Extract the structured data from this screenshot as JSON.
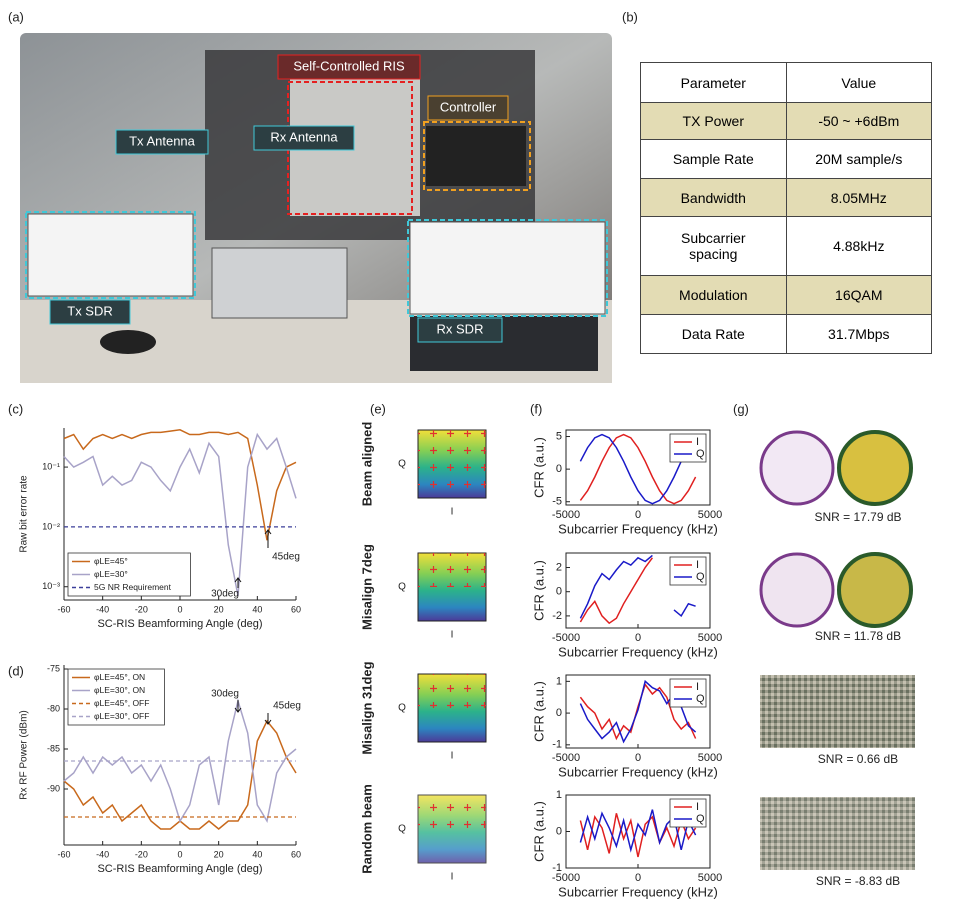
{
  "panel_labels": [
    "(a)",
    "(b)",
    "(c)",
    "(d)",
    "(e)",
    "(f)",
    "(g)"
  ],
  "photo": {
    "labels": [
      "Self-Controlled RIS",
      "Controller",
      "Tx Antenna",
      "Rx Antenna",
      "Tx SDR",
      "Rx SDR"
    ]
  },
  "table": {
    "header": [
      "Parameter",
      "Value"
    ],
    "rows": [
      [
        "TX Power",
        "-50 ~ +6dBm"
      ],
      [
        "Sample Rate",
        "20M sample/s"
      ],
      [
        "Bandwidth",
        "8.05MHz"
      ],
      [
        "Subcarrier spacing",
        "4.88kHz"
      ],
      [
        "Modulation",
        "16QAM"
      ],
      [
        "Data Rate",
        "31.7Mbps"
      ]
    ]
  },
  "chart_data": [
    {
      "type": "line",
      "xlabel": "SC-RIS Beamforming Angle (deg)",
      "ylabel": "Raw bit error rate",
      "log_y": true,
      "legend": "lower left",
      "x": [
        -60,
        -55,
        -50,
        -45,
        -40,
        -35,
        -30,
        -25,
        -20,
        -15,
        -10,
        -5,
        0,
        5,
        10,
        15,
        20,
        25,
        30,
        35,
        40,
        45,
        50,
        55,
        60
      ],
      "xlim": [
        -60,
        60
      ],
      "xticks": [
        -60,
        -40,
        -20,
        0,
        20,
        40,
        60
      ],
      "ylim": [
        0.0006,
        0.45
      ],
      "yticks": [
        {
          "value": 0.001,
          "label": "10⁻³"
        },
        {
          "value": 0.01,
          "label": "10⁻²"
        },
        {
          "value": 0.1,
          "label": "10⁻¹"
        }
      ],
      "series": [
        {
          "name": "φLE=45°",
          "color": "#c8691c",
          "dash": false,
          "values": [
            0.3,
            0.35,
            0.2,
            0.3,
            0.35,
            0.3,
            0.35,
            0.3,
            0.35,
            0.38,
            0.38,
            0.4,
            0.42,
            0.35,
            0.35,
            0.38,
            0.38,
            0.35,
            0.38,
            0.3,
            0.05,
            0.006,
            0.04,
            0.1,
            0.12
          ]
        },
        {
          "name": "φLE=30°",
          "color": "#a8a3c8",
          "dash": false,
          "values": [
            0.15,
            0.1,
            0.12,
            0.15,
            0.05,
            0.07,
            0.05,
            0.06,
            0.12,
            0.1,
            0.06,
            0.04,
            0.1,
            0.2,
            0.08,
            0.25,
            0.15,
            0.005,
            0.0007,
            0.1,
            0.35,
            0.2,
            0.3,
            0.1,
            0.03
          ]
        },
        {
          "name": "5G NR Requirement",
          "color": "#3b3f9a",
          "dash": true,
          "values": [
            0.01,
            0.01,
            0.01,
            0.01,
            0.01,
            0.01,
            0.01,
            0.01,
            0.01,
            0.01,
            0.01,
            0.01,
            0.01,
            0.01,
            0.01,
            0.01,
            0.01,
            0.01,
            0.01,
            0.01,
            0.01,
            0.01,
            0.01,
            0.01,
            0.01
          ]
        }
      ],
      "annotations": [
        "30deg",
        "45deg"
      ]
    },
    {
      "type": "line",
      "xlabel": "SC-RIS Beamforming Angle (deg)",
      "ylabel": "Rx RF Power (dBm)",
      "log_y": false,
      "legend": "upper left",
      "x": [
        -60,
        -55,
        -50,
        -45,
        -40,
        -35,
        -30,
        -25,
        -20,
        -15,
        -10,
        -5,
        0,
        5,
        10,
        15,
        20,
        25,
        30,
        35,
        40,
        45,
        50,
        55,
        60
      ],
      "xlim": [
        -60,
        60
      ],
      "xticks": [
        -60,
        -40,
        -20,
        0,
        20,
        40,
        60
      ],
      "ylim": [
        -97,
        -74.5
      ],
      "yticks": [
        -90,
        -85,
        -80,
        -75
      ],
      "series": [
        {
          "name": "φLE=45°, ON",
          "color": "#c8691c",
          "dash": false,
          "values": [
            -89,
            -90,
            -92,
            -91,
            -93,
            -92,
            -94,
            -93,
            -92,
            -94,
            -95,
            -95,
            -94,
            -95,
            -95,
            -94,
            -95,
            -94,
            -94,
            -92,
            -84,
            -81.5,
            -83,
            -86,
            -88
          ]
        },
        {
          "name": "φLE=30°, ON",
          "color": "#a8a3c8",
          "dash": false,
          "values": [
            -89,
            -88,
            -86,
            -88,
            -86,
            -87,
            -86,
            -88,
            -87,
            -89,
            -87,
            -90,
            -94,
            -92,
            -87,
            -86,
            -92,
            -84,
            -79,
            -83,
            -92,
            -94,
            -88,
            -86,
            -85
          ]
        },
        {
          "name": "φLE=45°, OFF",
          "color": "#c8691c",
          "dash": true,
          "values": [
            -93.5,
            -93.5,
            -93.5,
            -93.5,
            -93.5,
            -93.5,
            -93.5,
            -93.5,
            -93.5,
            -93.5,
            -93.5,
            -93.5,
            -93.5,
            -93.5,
            -93.5,
            -93.5,
            -93.5,
            -93.5,
            -93.5,
            -93.5,
            -93.5,
            -93.5,
            -93.5,
            -93.5,
            -93.5
          ]
        },
        {
          "name": "φLE=30°, OFF",
          "color": "#a8a3c8",
          "dash": true,
          "values": [
            -86.5,
            -86.5,
            -86.5,
            -86.5,
            -86.5,
            -86.5,
            -86.5,
            -86.5,
            -86.5,
            -86.5,
            -86.5,
            -86.5,
            -86.5,
            -86.5,
            -86.5,
            -86.5,
            -86.5,
            -86.5,
            -86.5,
            -86.5,
            -86.5,
            -86.5,
            -86.5,
            -86.5,
            -86.5
          ]
        }
      ],
      "annotations": [
        "30deg",
        "45deg"
      ]
    },
    {
      "type": "line",
      "xlabel": "Subcarrier Frequency (kHz)",
      "ylabel": "CFR (a.u.)",
      "box": true,
      "legend": "upper right",
      "x": [
        -4000,
        -3500,
        -3000,
        -2500,
        -2000,
        -1500,
        -1000,
        -500,
        0,
        500,
        1000,
        1500,
        2000,
        2500,
        3000,
        3500,
        4000
      ],
      "xlim": [
        -5000,
        5000
      ],
      "xticks": [
        -5000,
        0,
        5000
      ],
      "ylim": [
        -5.5,
        6
      ],
      "yticks": [
        -5,
        0,
        5
      ],
      "series": [
        {
          "name": "I",
          "color": "#e02020",
          "values": [
            -4.8,
            -3.3,
            -1.2,
            1.2,
            3.3,
            4.8,
            5.3,
            4.8,
            3.3,
            1.2,
            -1.2,
            -3.3,
            -4.8,
            -5.3,
            -4.8,
            -3.3,
            -1.2
          ]
        },
        {
          "name": "Q",
          "color": "#1a1ac8",
          "values": [
            1.2,
            3.3,
            4.8,
            5.3,
            4.8,
            3.3,
            1.2,
            -1.2,
            -3.3,
            -4.8,
            -5.3,
            -4.8,
            -3.3,
            -1.2,
            1.2,
            3.3,
            4.8
          ]
        }
      ]
    },
    {
      "type": "line",
      "xlabel": "Subcarrier Frequency (kHz)",
      "ylabel": "CFR (a.u.)",
      "box": true,
      "legend": "upper right",
      "x": [
        -4000,
        -3500,
        -3000,
        -2500,
        -2000,
        -1500,
        -1000,
        -500,
        0,
        500,
        1000,
        1500,
        2000,
        2500,
        3000,
        3500,
        4000
      ],
      "xlim": [
        -5000,
        5000
      ],
      "xticks": [
        -5000,
        0,
        5000
      ],
      "ylim": [
        -3,
        3.2
      ],
      "yticks": [
        -2,
        0,
        2
      ],
      "series": [
        {
          "name": "I",
          "color": "#e02020",
          "values": [
            -2.5,
            -1.5,
            -0.8,
            -2,
            -2.6,
            -2.2,
            -1,
            0,
            1,
            2,
            2.8,
            null,
            null,
            null,
            null,
            null,
            null
          ]
        },
        {
          "name": "Q",
          "color": "#1a1ac8",
          "values": [
            -2.2,
            -1,
            0.5,
            1.5,
            1,
            1.8,
            2.5,
            2.2,
            2.8,
            2.5,
            3,
            null,
            null,
            -1.5,
            -2,
            -1,
            -1.2
          ]
        }
      ]
    },
    {
      "type": "line",
      "xlabel": "Subcarrier Frequency (kHz)",
      "ylabel": "CFR (a.u.)",
      "box": true,
      "legend": "upper right",
      "x": [
        -4000,
        -3500,
        -3000,
        -2500,
        -2000,
        -1500,
        -1000,
        -500,
        0,
        500,
        1000,
        1500,
        2000,
        2500,
        3000,
        3500,
        4000
      ],
      "xlim": [
        -5000,
        5000
      ],
      "xticks": [
        -5000,
        0,
        5000
      ],
      "ylim": [
        -1.1,
        1.2
      ],
      "yticks": [
        -1,
        0,
        1
      ],
      "series": [
        {
          "name": "I",
          "color": "#e02020",
          "values": [
            0.5,
            0.2,
            0,
            -0.5,
            -0.2,
            -0.8,
            -0.4,
            -0.6,
            0.2,
            0.9,
            0.6,
            0.8,
            0.5,
            -0.2,
            -0.5,
            -0.3,
            -0.8
          ]
        },
        {
          "name": "Q",
          "color": "#1a1ac8",
          "values": [
            0.3,
            -0.2,
            -0.5,
            -0.8,
            -0.6,
            -0.3,
            -0.9,
            -0.5,
            0.1,
            1,
            0.8,
            0.7,
            0.3,
            0.6,
            0.2,
            -0.4,
            -0.6
          ]
        }
      ]
    },
    {
      "type": "line",
      "xlabel": "Subcarrier Frequency (kHz)",
      "ylabel": "CFR (a.u.)",
      "box": true,
      "legend": "upper right",
      "x": [
        -4000,
        -3500,
        -3000,
        -2500,
        -2000,
        -1500,
        -1000,
        -500,
        0,
        500,
        1000,
        1500,
        2000,
        2500,
        3000,
        3500,
        4000
      ],
      "xlim": [
        -5000,
        5000
      ],
      "xticks": [
        -5000,
        0,
        5000
      ],
      "ylim": [
        -1,
        1
      ],
      "yticks": [
        -1,
        0,
        1
      ],
      "series": [
        {
          "name": "I",
          "color": "#e02020",
          "values": [
            0.3,
            -0.5,
            0.4,
            0.1,
            -0.6,
            0.5,
            -0.2,
            0.3,
            -0.7,
            0.2,
            0.4,
            -0.3,
            0.1,
            -0.4,
            0.3,
            -0.2,
            0.1
          ]
        },
        {
          "name": "Q",
          "color": "#1a1ac8",
          "values": [
            -0.3,
            0.4,
            -0.2,
            0.5,
            0.1,
            -0.4,
            0.3,
            -0.5,
            0.2,
            -0.1,
            0.6,
            -0.3,
            0.2,
            0.4,
            -0.5,
            0.3,
            -0.1
          ]
        }
      ]
    }
  ],
  "constellation": {
    "rows": [
      "Beam aligned",
      "Misalign 7deg",
      "Misalign 31deg",
      "Random beam"
    ],
    "ylabel": "Q",
    "xlabel": "I"
  },
  "images": {
    "snr": [
      "SNR = 17.79 dB",
      "SNR = 11.78 dB",
      "SNR = 0.66 dB",
      "SNR = -8.83 dB"
    ]
  }
}
